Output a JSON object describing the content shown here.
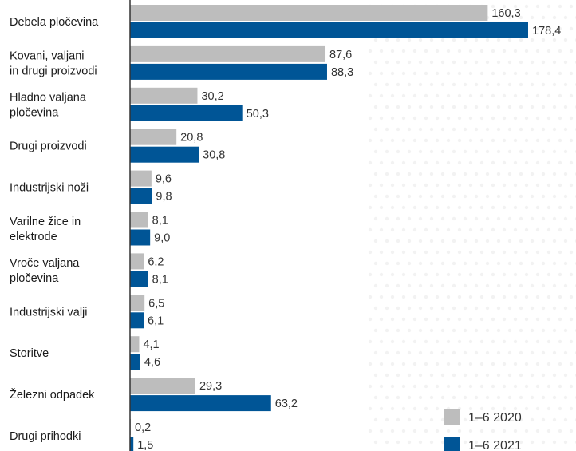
{
  "chart_data": {
    "type": "bar",
    "orientation": "horizontal",
    "categories": [
      [
        "Debela pločevina"
      ],
      [
        "Kovani, valjani",
        "in drugi proizvodi"
      ],
      [
        "Hladno valjana",
        "pločevina"
      ],
      [
        "Drugi proizvodi"
      ],
      [
        "Industrijski noži"
      ],
      [
        "Varilne žice in",
        "elektrode"
      ],
      [
        "Vroče valjana",
        "pločevina"
      ],
      [
        "Industrijski valji"
      ],
      [
        "Storitve"
      ],
      [
        "Železni odpadek"
      ],
      [
        "Drugi prihodki"
      ]
    ],
    "series": [
      {
        "name": "1–6 2020",
        "color": "#bdbdbd",
        "values": [
          160.3,
          87.6,
          30.2,
          20.8,
          9.6,
          8.1,
          6.2,
          6.5,
          4.1,
          29.3,
          0.2
        ],
        "labels": [
          "160,3",
          "87,6",
          "30,2",
          "20,8",
          "9,6",
          "8,1",
          "6,2",
          "6,5",
          "4,1",
          "29,3",
          "0,2"
        ]
      },
      {
        "name": "1–6 2021",
        "color": "#005596",
        "values": [
          178.4,
          88.3,
          50.3,
          30.8,
          9.8,
          9.0,
          8.1,
          6.1,
          4.6,
          63.2,
          1.5
        ],
        "labels": [
          "178,4",
          "88,3",
          "50,3",
          "30,8",
          "9,8",
          "9,0",
          "8,1",
          "6,1",
          "4,6",
          "63,2",
          "1,5"
        ]
      }
    ],
    "legend_position": "bottom-right",
    "grid": false,
    "xlim": [
      0,
      178.4
    ]
  }
}
